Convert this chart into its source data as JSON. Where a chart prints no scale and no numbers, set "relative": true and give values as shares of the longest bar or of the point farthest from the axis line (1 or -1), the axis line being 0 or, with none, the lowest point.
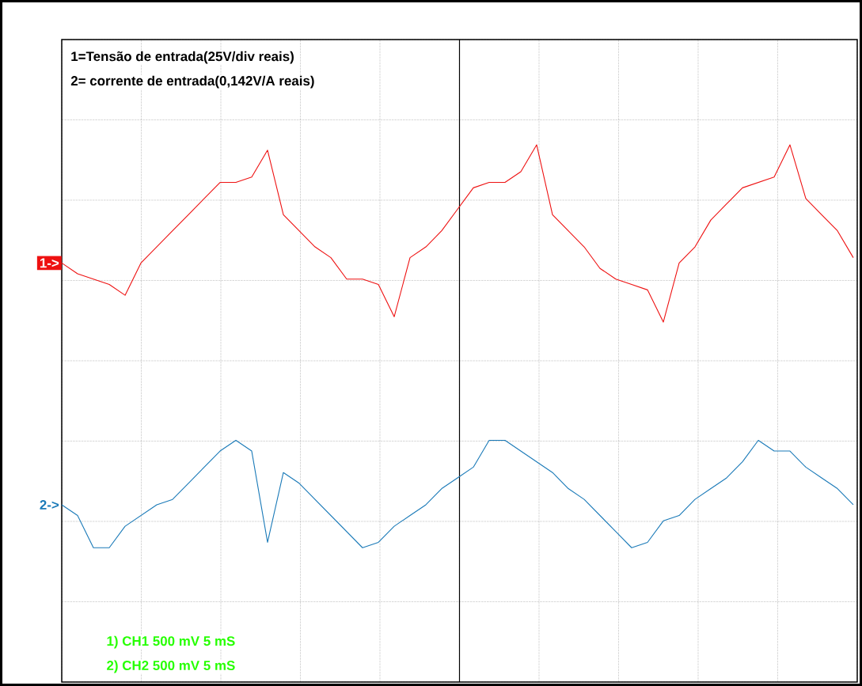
{
  "chart_data": {
    "type": "line",
    "relative": true,
    "grid": true,
    "legend": false,
    "tick_labels": false,
    "line_style": "solid",
    "categories": [
      null,
      null,
      null,
      null,
      null,
      null,
      null,
      null,
      null,
      null,
      null,
      null,
      null,
      null,
      null,
      null,
      null,
      null,
      null,
      null,
      null,
      null,
      null,
      null,
      null,
      null,
      null,
      null,
      null,
      null,
      null,
      null,
      null,
      null,
      null,
      null,
      null,
      null,
      null,
      null,
      null,
      null,
      null,
      null,
      null,
      null,
      null,
      null,
      null,
      null,
      null
    ],
    "series": [
      {
        "name": "1->",
        "color": "#ee1111",
        "values": [
          0.78,
          0.76,
          0.75,
          0.74,
          0.72,
          0.78,
          0.81,
          0.84,
          0.87,
          0.9,
          0.93,
          0.93,
          0.94,
          0.99,
          0.87,
          0.84,
          0.81,
          0.79,
          0.75,
          0.75,
          0.74,
          0.68,
          0.79,
          0.81,
          0.84,
          0.88,
          0.92,
          0.93,
          0.93,
          0.95,
          1.0,
          0.87,
          0.84,
          0.81,
          0.77,
          0.75,
          0.74,
          0.73,
          0.67,
          0.78,
          0.81,
          0.86,
          0.89,
          0.92,
          0.93,
          0.94,
          1.0,
          0.9,
          0.87,
          0.84,
          0.79
        ]
      },
      {
        "name": "2->",
        "color": "#1a7ab8",
        "values": [
          0.33,
          0.31,
          0.25,
          0.25,
          0.29,
          0.31,
          0.33,
          0.34,
          0.37,
          0.4,
          0.43,
          0.45,
          0.43,
          0.26,
          0.39,
          0.37,
          0.34,
          0.31,
          0.28,
          0.25,
          0.26,
          0.29,
          0.31,
          0.33,
          0.36,
          0.38,
          0.4,
          0.45,
          0.45,
          0.43,
          0.41,
          0.39,
          0.36,
          0.34,
          0.31,
          0.28,
          0.25,
          0.26,
          0.3,
          0.31,
          0.34,
          0.36,
          0.38,
          0.41,
          0.45,
          0.43,
          0.43,
          0.4,
          0.38,
          0.36,
          0.33
        ]
      }
    ],
    "annotations": [
      "1=Tensão de entrada(25V/div reais)",
      "2= corrente de entrada(0,142V/A reais)",
      "1) CH1  500 mV   5 mS",
      "2) CH2  500 mV   5 mS"
    ]
  }
}
